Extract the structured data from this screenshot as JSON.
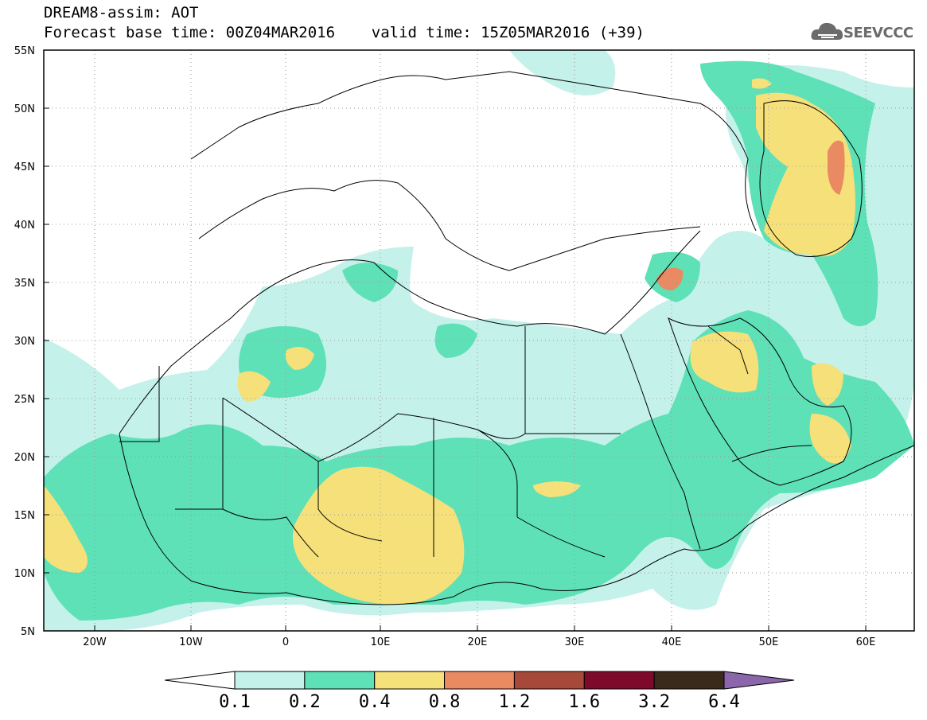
{
  "header": {
    "title_line1": "DREAM8-assim: AOT",
    "title_line2": "Forecast base time: 00Z04MAR2016    valid time: 15Z05MAR2016 (+39)"
  },
  "logo": {
    "text": "SEEVCCC",
    "icon": "cloud-icon"
  },
  "map": {
    "lon_labels": [
      "20W",
      "10W",
      "0",
      "10E",
      "20E",
      "30E",
      "40E",
      "50E",
      "60E"
    ],
    "lat_labels": [
      "55N",
      "50N",
      "45N",
      "40N",
      "35N",
      "30N",
      "25N",
      "20N",
      "15N",
      "10N",
      "5N"
    ]
  },
  "colorbar": {
    "labels": [
      "0.1",
      "0.2",
      "0.4",
      "0.8",
      "1.2",
      "1.6",
      "3.2",
      "6.4"
    ],
    "colors": [
      "#ffffff",
      "#c4f1ea",
      "#5ee1b7",
      "#f5e079",
      "#e98a62",
      "#a6483a",
      "#7e0a2a",
      "#3a2a1c",
      "#8c66aa"
    ]
  },
  "colors": {
    "aot_0_1": "#c4f1ea",
    "aot_0_2": "#5ee1b7",
    "aot_0_4": "#f5e079",
    "aot_0_8": "#e98a62"
  }
}
